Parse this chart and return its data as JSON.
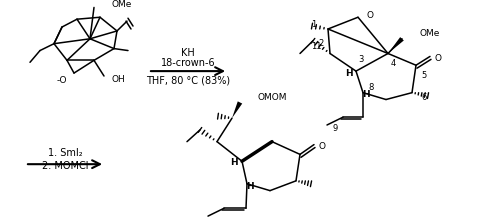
{
  "background_color": "#ffffff",
  "text_color": "#000000",
  "reaction1_conditions": [
    "KH",
    "18-crown-6",
    "THF, 80 °C (83%)"
  ],
  "reaction2_conditions": [
    "1. SmI₂",
    "2. MOMCl"
  ],
  "fig_width": 5.0,
  "fig_height": 2.21,
  "dpi": 100
}
